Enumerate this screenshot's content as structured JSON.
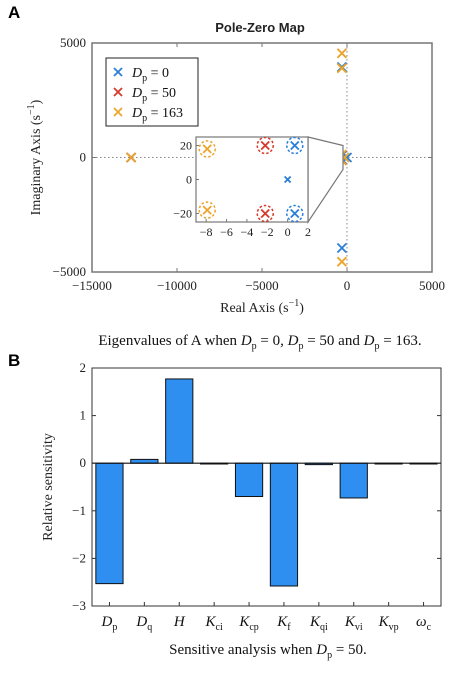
{
  "panel_a": {
    "letter": "A",
    "caption_parts": [
      "Eigenvalues of A when ",
      "D",
      "p",
      " = 0, ",
      "D",
      "p",
      " = 50 and ",
      "D",
      "p",
      " = 163."
    ]
  },
  "panel_b": {
    "letter": "B",
    "caption_parts": [
      "Sensitive analysis when ",
      "D",
      "p",
      " = 50."
    ]
  },
  "colors": {
    "blue": "#2b7fd8",
    "red": "#d63a2a",
    "orange": "#eba52c",
    "bar": "#2e8ff0",
    "axis": "#777777"
  },
  "chart_data": [
    {
      "type": "scatter",
      "title": "Pole-Zero Map",
      "xlabel": "Real Axis (s",
      "xlabel_sup": "−1",
      "xlabel_end": ")",
      "ylabel": "Imaginary Axis (s",
      "ylabel_sup": "−1",
      "ylabel_end": ")",
      "xlim": [
        -15000,
        5000
      ],
      "ylim": [
        -5000,
        5000
      ],
      "xticks": [
        -15000,
        -10000,
        -5000,
        0,
        5000
      ],
      "xtick_labels": [
        "−15000",
        "−10000",
        "−5000",
        "0",
        "5000"
      ],
      "yticks": [
        -5000,
        0,
        5000
      ],
      "ytick_labels": [
        "−5000",
        "0",
        "5000"
      ],
      "legend_position": "top-left",
      "series": [
        {
          "name": "0",
          "legend_var": "D",
          "legend_sub": "p",
          "legend_eq": " = 0",
          "color": "#2b7fd8",
          "points": [
            [
              -12700,
              0
            ],
            [
              -300,
              3950
            ],
            [
              -300,
              -3950
            ],
            [
              0,
              0
            ],
            [
              -300,
              80
            ],
            [
              -300,
              -80
            ]
          ]
        },
        {
          "name": "50",
          "legend_var": "D",
          "legend_sub": "p",
          "legend_eq": " = 50",
          "color": "#d63a2a",
          "points": [
            [
              -12700,
              0
            ],
            [
              -300,
              120
            ],
            [
              -300,
              -120
            ]
          ]
        },
        {
          "name": "163",
          "legend_var": "D",
          "legend_sub": "p",
          "legend_eq": " = 163",
          "color": "#eba52c",
          "points": [
            [
              -12700,
              0
            ],
            [
              -300,
              4550
            ],
            [
              -300,
              3900
            ],
            [
              -300,
              -4550
            ],
            [
              -300,
              130
            ],
            [
              -300,
              -130
            ],
            [
              -150,
              0
            ],
            [
              -450,
              0
            ]
          ]
        }
      ],
      "inset": {
        "xlim": [
          -9,
          2
        ],
        "ylim": [
          -25,
          25
        ],
        "xticks": [
          -8,
          -6,
          -4,
          -2,
          0,
          2
        ],
        "xtick_labels": [
          "−8",
          "−6",
          "−4",
          "−2",
          "0",
          "2"
        ],
        "yticks": [
          -20,
          0,
          20
        ],
        "ytick_labels": [
          "−20",
          "0",
          "20"
        ],
        "circled_points": [
          {
            "x": 0.7,
            "y": 20,
            "color": "#2b7fd8"
          },
          {
            "x": 0.7,
            "y": -20,
            "color": "#2b7fd8"
          },
          {
            "x": -2.2,
            "y": 20,
            "color": "#d63a2a"
          },
          {
            "x": -2.2,
            "y": -20,
            "color": "#d63a2a"
          },
          {
            "x": -7.9,
            "y": 18,
            "color": "#eba52c"
          },
          {
            "x": -7.9,
            "y": -18,
            "color": "#eba52c"
          }
        ],
        "plain_points": [
          {
            "x": 0,
            "y": 0,
            "color": "#2b7fd8"
          }
        ]
      }
    },
    {
      "type": "bar",
      "title": "",
      "xlabel": "",
      "ylabel": "Relative sensitivity",
      "ylim": [
        -3,
        2
      ],
      "yticks": [
        -3,
        -2,
        -1,
        0,
        1,
        2
      ],
      "ytick_labels": [
        "−3",
        "−2",
        "−1",
        "0",
        "1",
        "2"
      ],
      "categories": [
        {
          "base": "D",
          "sub": "p"
        },
        {
          "base": "D",
          "sub": "q"
        },
        {
          "base": "H",
          "sub": ""
        },
        {
          "base": "K",
          "sub": "ci"
        },
        {
          "base": "K",
          "sub": "cp"
        },
        {
          "base": "K",
          "sub": "f"
        },
        {
          "base": "K",
          "sub": "qi"
        },
        {
          "base": "K",
          "sub": "vi"
        },
        {
          "base": "K",
          "sub": "vp"
        },
        {
          "base": "ω",
          "sub": "c"
        }
      ],
      "values": [
        -2.53,
        0.08,
        1.77,
        -0.01,
        -0.7,
        -2.58,
        -0.03,
        -0.73,
        -0.01,
        -0.01
      ]
    }
  ]
}
